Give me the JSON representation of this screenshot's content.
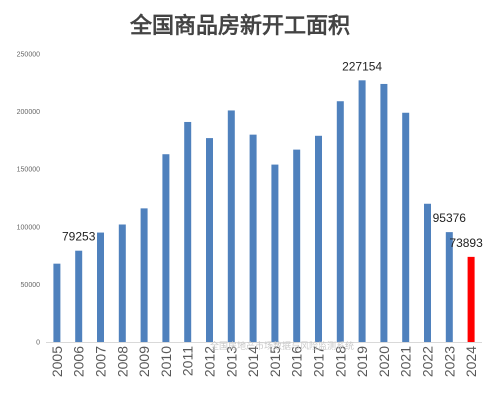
{
  "chart_data": {
    "type": "bar",
    "title": "全国商品房新开工面积",
    "xlabel": "",
    "ylabel": "",
    "categories": [
      "2005",
      "2006",
      "2007",
      "2008",
      "2009",
      "2010",
      "2011",
      "2012",
      "2013",
      "2014",
      "2015",
      "2016",
      "2017",
      "2018",
      "2019",
      "2020",
      "2021",
      "2022",
      "2023",
      "2024"
    ],
    "values": [
      68000,
      79253,
      95000,
      102000,
      116000,
      163000,
      191000,
      177000,
      201000,
      180000,
      154000,
      167000,
      179000,
      209000,
      227154,
      224000,
      199000,
      120000,
      95376,
      73893
    ],
    "data_labels": [
      {
        "index": 1,
        "text": "79253"
      },
      {
        "index": 14,
        "text": "227154"
      },
      {
        "index": 18,
        "text": "95376"
      },
      {
        "index": 19,
        "text": "73893"
      }
    ],
    "ylim": [
      0,
      250000
    ],
    "yticks": [
      0,
      50000,
      100000,
      150000,
      200000,
      250000
    ],
    "grid": false,
    "legend": "none",
    "bar_color": "#4f81bd",
    "highlight_color": "#ff0000",
    "highlight_index": 19
  },
  "watermark": "全国房地产市场数据与风险监测系统"
}
